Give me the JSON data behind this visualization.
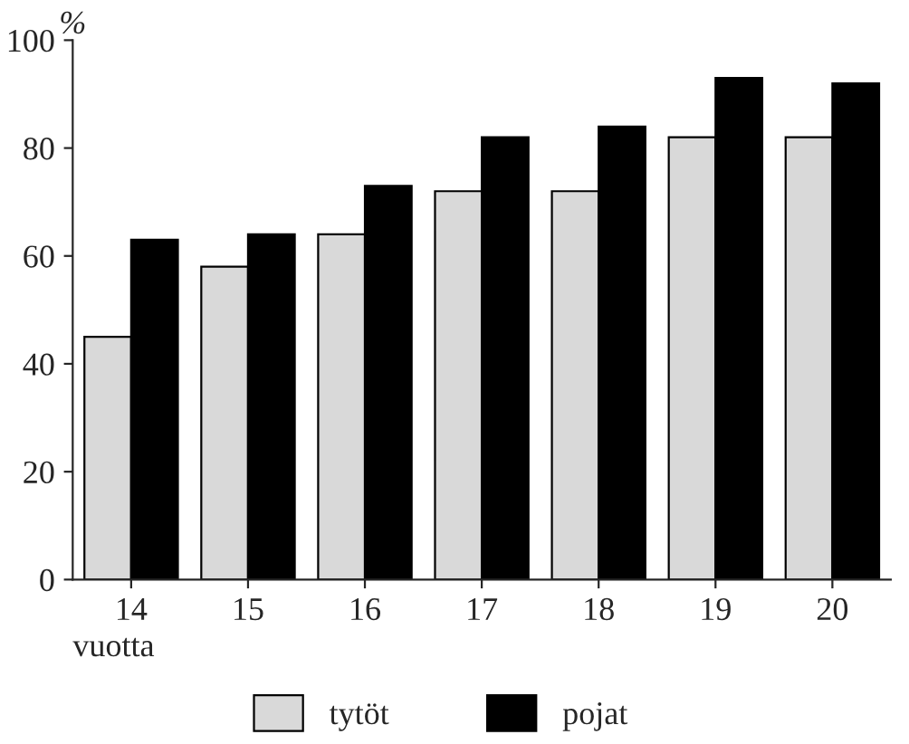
{
  "chart_data": {
    "type": "bar",
    "ylabel": "%",
    "xlabel": "vuotta",
    "categories": [
      "14",
      "15",
      "16",
      "17",
      "18",
      "19",
      "20"
    ],
    "series": [
      {
        "name": "tytöt",
        "color": "#d9d9d9",
        "values": [
          45,
          58,
          64,
          72,
          72,
          82,
          82
        ]
      },
      {
        "name": "pojat",
        "color": "#000000",
        "values": [
          63,
          64,
          73,
          82,
          84,
          93,
          92
        ]
      }
    ],
    "ylim": [
      0,
      100
    ],
    "yticks": [
      0,
      20,
      40,
      60,
      80,
      100
    ],
    "grid": false,
    "legend": "bottom"
  }
}
